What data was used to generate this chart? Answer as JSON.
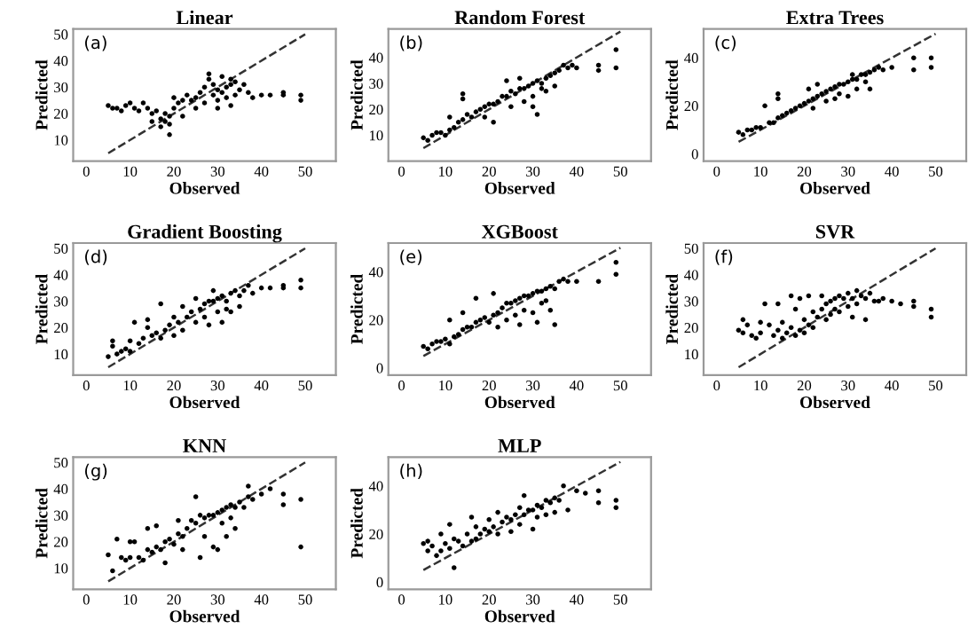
{
  "chart_data": [
    {
      "type": "scatter",
      "title": "Linear",
      "xlabel": "Observed",
      "ylabel": "Predicted",
      "annotations": [
        "(a)"
      ],
      "xlim": [
        -3,
        57
      ],
      "ylim": [
        2,
        52
      ],
      "xticks": [
        0,
        10,
        20,
        30,
        40,
        50
      ],
      "yticks": [
        10,
        20,
        30,
        40,
        50
      ],
      "grid": false,
      "series": [
        {
          "marker": "circle",
          "color": "#000000",
          "x": [
            5,
            6,
            7,
            8,
            9,
            10,
            11,
            12,
            13,
            14,
            15,
            15,
            16,
            17,
            17,
            18,
            18,
            19,
            19,
            19,
            20,
            20,
            21,
            22,
            22,
            23,
            24,
            25,
            26,
            27,
            28,
            29,
            29,
            30,
            30,
            31,
            31,
            32,
            32,
            33,
            33,
            34,
            34,
            35,
            36,
            37,
            38,
            40,
            42,
            45,
            45,
            49,
            49,
            30,
            27,
            25,
            33,
            28
          ],
          "values": [
            23,
            22,
            22,
            21,
            23,
            24,
            22,
            21,
            24,
            22,
            20,
            17,
            21,
            18,
            15,
            20,
            17,
            19,
            16,
            12,
            22,
            26,
            24,
            25,
            19,
            27,
            25,
            26,
            28,
            30,
            33,
            31,
            27,
            29,
            25,
            34,
            28,
            30,
            26,
            31,
            23,
            32,
            27,
            29,
            31,
            28,
            26,
            27,
            27,
            28,
            27,
            27,
            25,
            22,
            24,
            22,
            33,
            35
          ]
        },
        {
          "type": "line",
          "color": "#333333",
          "line_style": "dashed",
          "x": [
            5,
            50
          ],
          "values": [
            5,
            50
          ]
        }
      ]
    },
    {
      "type": "scatter",
      "title": "Random Forest",
      "xlabel": "Observed",
      "ylabel": "Predicted",
      "annotations": [
        "(b)"
      ],
      "xlim": [
        -3,
        57
      ],
      "ylim": [
        0,
        51
      ],
      "xticks": [
        0,
        10,
        20,
        30,
        40,
        50
      ],
      "yticks": [
        10,
        20,
        30,
        40
      ],
      "grid": false,
      "series": [
        {
          "marker": "circle",
          "color": "#000000",
          "x": [
            5,
            6,
            7,
            8,
            9,
            10,
            11,
            11,
            12,
            13,
            14,
            14,
            14,
            15,
            16,
            17,
            18,
            19,
            19,
            20,
            21,
            21,
            22,
            23,
            24,
            24,
            25,
            25,
            26,
            27,
            27,
            28,
            28,
            29,
            30,
            30,
            31,
            31,
            32,
            32,
            33,
            33,
            34,
            35,
            35,
            36,
            37,
            38,
            39,
            40,
            45,
            45,
            49,
            49,
            30
          ],
          "values": [
            9,
            8,
            10,
            11,
            11,
            10,
            12,
            17,
            13,
            15,
            26,
            24,
            16,
            18,
            17,
            19,
            20,
            21,
            17,
            22,
            22,
            15,
            23,
            25,
            25,
            31,
            27,
            21,
            26,
            28,
            32,
            28,
            23,
            29,
            30,
            25,
            31,
            18,
            30,
            28,
            32,
            27,
            33,
            34,
            29,
            35,
            37,
            36,
            37,
            36,
            35,
            37,
            43,
            36,
            21
          ]
        },
        {
          "type": "line",
          "color": "#333333",
          "line_style": "dashed",
          "x": [
            5,
            50
          ],
          "values": [
            5,
            50
          ]
        }
      ]
    },
    {
      "type": "scatter",
      "title": "Extra Trees",
      "xlabel": "Observed",
      "ylabel": "Predicted",
      "annotations": [
        "(c)"
      ],
      "xlim": [
        -3,
        57
      ],
      "ylim": [
        -3,
        52
      ],
      "xticks": [
        0,
        10,
        20,
        30,
        40,
        50
      ],
      "yticks": [
        0,
        20,
        40
      ],
      "grid": false,
      "series": [
        {
          "marker": "circle",
          "color": "#000000",
          "x": [
            5,
            6,
            7,
            8,
            9,
            10,
            11,
            12,
            13,
            14,
            14,
            14,
            15,
            16,
            17,
            18,
            19,
            20,
            21,
            21,
            22,
            22,
            23,
            24,
            25,
            25,
            26,
            27,
            27,
            28,
            28,
            29,
            30,
            30,
            31,
            32,
            32,
            33,
            34,
            34,
            35,
            35,
            36,
            37,
            38,
            40,
            45,
            45,
            49,
            49,
            31,
            23
          ],
          "values": [
            9,
            8,
            10,
            10,
            11,
            11,
            20,
            13,
            13,
            25,
            23,
            15,
            16,
            17,
            18,
            19,
            20,
            21,
            22,
            27,
            23,
            19,
            24,
            25,
            26,
            22,
            27,
            28,
            23,
            29,
            25,
            29,
            30,
            24,
            31,
            31,
            27,
            33,
            33,
            30,
            34,
            27,
            35,
            36,
            35,
            36,
            35,
            40,
            40,
            36,
            33,
            29
          ]
        },
        {
          "type": "line",
          "color": "#333333",
          "line_style": "dashed",
          "x": [
            5,
            50
          ],
          "values": [
            5,
            50
          ]
        }
      ]
    },
    {
      "type": "scatter",
      "title": "Gradient Boosting",
      "xlabel": "Observed",
      "ylabel": "Predicted",
      "annotations": [
        "(d)"
      ],
      "xlim": [
        -3,
        57
      ],
      "ylim": [
        2,
        52
      ],
      "xticks": [
        0,
        10,
        20,
        30,
        40,
        50
      ],
      "yticks": [
        10,
        20,
        30,
        40,
        50
      ],
      "grid": false,
      "series": [
        {
          "marker": "circle",
          "color": "#000000",
          "x": [
            5,
            6,
            6,
            7,
            8,
            9,
            10,
            10,
            11,
            12,
            13,
            14,
            14,
            15,
            16,
            17,
            17,
            18,
            19,
            20,
            20,
            21,
            22,
            22,
            23,
            24,
            25,
            25,
            26,
            27,
            27,
            28,
            28,
            29,
            30,
            30,
            31,
            31,
            32,
            32,
            33,
            33,
            34,
            35,
            35,
            36,
            37,
            38,
            40,
            42,
            45,
            45,
            49,
            49,
            29
          ],
          "values": [
            9,
            15,
            13,
            10,
            11,
            12,
            11,
            15,
            22,
            14,
            16,
            23,
            20,
            17,
            18,
            16,
            29,
            19,
            21,
            17,
            24,
            22,
            28,
            19,
            24,
            26,
            31,
            22,
            27,
            29,
            24,
            30,
            21,
            30,
            31,
            26,
            32,
            22,
            30,
            27,
            33,
            26,
            34,
            32,
            28,
            34,
            36,
            33,
            35,
            35,
            36,
            35,
            38,
            35,
            34
          ]
        },
        {
          "type": "line",
          "color": "#333333",
          "line_style": "dashed",
          "x": [
            5,
            50
          ],
          "values": [
            5,
            50
          ]
        }
      ]
    },
    {
      "type": "scatter",
      "title": "XGBoost",
      "xlabel": "Observed",
      "ylabel": "Predicted",
      "annotations": [
        "(e)"
      ],
      "xlim": [
        -3,
        57
      ],
      "ylim": [
        -3,
        52
      ],
      "xticks": [
        0,
        10,
        20,
        30,
        40,
        50
      ],
      "yticks": [
        0,
        20,
        40
      ],
      "grid": false,
      "series": [
        {
          "marker": "circle",
          "color": "#000000",
          "x": [
            5,
            6,
            7,
            8,
            9,
            10,
            11,
            11,
            12,
            13,
            14,
            14,
            15,
            16,
            17,
            17,
            18,
            19,
            20,
            21,
            21,
            22,
            22,
            23,
            24,
            24,
            25,
            26,
            26,
            27,
            27,
            28,
            28,
            29,
            30,
            30,
            31,
            31,
            32,
            32,
            33,
            33,
            34,
            35,
            35,
            36,
            37,
            38,
            40,
            45,
            49,
            49,
            34
          ],
          "values": [
            9,
            8,
            10,
            11,
            11,
            12,
            20,
            10,
            13,
            14,
            23,
            16,
            17,
            17,
            19,
            29,
            20,
            21,
            19,
            22,
            31,
            23,
            17,
            25,
            27,
            20,
            27,
            28,
            22,
            29,
            18,
            30,
            24,
            30,
            31,
            23,
            32,
            19,
            32,
            27,
            33,
            28,
            34,
            33,
            18,
            36,
            37,
            36,
            36,
            36,
            44,
            39,
            24
          ]
        },
        {
          "type": "line",
          "color": "#333333",
          "line_style": "dashed",
          "x": [
            5,
            50
          ],
          "values": [
            5,
            50
          ]
        }
      ]
    },
    {
      "type": "scatter",
      "title": "SVR",
      "xlabel": "Observed",
      "ylabel": "Predicted",
      "annotations": [
        "(f)"
      ],
      "xlim": [
        -3,
        57
      ],
      "ylim": [
        2,
        52
      ],
      "xticks": [
        0,
        10,
        20,
        30,
        40,
        50
      ],
      "yticks": [
        10,
        20,
        30,
        40,
        50
      ],
      "grid": false,
      "series": [
        {
          "marker": "circle",
          "color": "#000000",
          "x": [
            5,
            6,
            6,
            7,
            8,
            9,
            10,
            10,
            11,
            12,
            13,
            14,
            14,
            15,
            15,
            16,
            17,
            17,
            18,
            18,
            19,
            19,
            20,
            20,
            21,
            21,
            22,
            22,
            23,
            24,
            24,
            25,
            25,
            26,
            26,
            27,
            27,
            28,
            28,
            29,
            30,
            30,
            31,
            31,
            32,
            32,
            33,
            34,
            34,
            35,
            36,
            37,
            38,
            40,
            42,
            45,
            45,
            49,
            49
          ],
          "values": [
            19,
            23,
            18,
            21,
            17,
            16,
            22,
            18,
            29,
            21,
            17,
            19,
            29,
            16,
            22,
            18,
            20,
            32,
            17,
            27,
            19,
            31,
            18,
            23,
            21,
            32,
            20,
            26,
            24,
            27,
            32,
            29,
            23,
            30,
            25,
            31,
            27,
            32,
            26,
            31,
            33,
            28,
            31,
            24,
            34,
            29,
            32,
            31,
            23,
            33,
            30,
            30,
            31,
            30,
            29,
            30,
            28,
            27,
            24
          ]
        },
        {
          "type": "line",
          "color": "#333333",
          "line_style": "dashed",
          "x": [
            5,
            50
          ],
          "values": [
            5,
            50
          ]
        }
      ]
    },
    {
      "type": "scatter",
      "title": "KNN",
      "xlabel": "Observed",
      "ylabel": "Predicted",
      "annotations": [
        "(g)"
      ],
      "xlim": [
        -3,
        57
      ],
      "ylim": [
        2,
        52
      ],
      "xticks": [
        0,
        10,
        20,
        30,
        40,
        50
      ],
      "yticks": [
        10,
        20,
        30,
        40,
        50
      ],
      "grid": false,
      "series": [
        {
          "marker": "circle",
          "color": "#000000",
          "x": [
            5,
            6,
            7,
            8,
            9,
            10,
            10,
            11,
            12,
            13,
            14,
            14,
            15,
            16,
            16,
            17,
            18,
            18,
            19,
            20,
            21,
            21,
            22,
            22,
            23,
            24,
            25,
            25,
            26,
            26,
            27,
            27,
            28,
            29,
            29,
            30,
            30,
            31,
            31,
            32,
            32,
            33,
            34,
            34,
            35,
            36,
            37,
            37,
            38,
            40,
            42,
            45,
            45,
            49,
            49,
            33
          ],
          "values": [
            15,
            9,
            21,
            14,
            13,
            20,
            14,
            20,
            14,
            13,
            25,
            17,
            16,
            18,
            26,
            17,
            20,
            12,
            21,
            19,
            23,
            28,
            22,
            17,
            25,
            28,
            27,
            37,
            14,
            30,
            29,
            22,
            30,
            30,
            18,
            31,
            17,
            32,
            27,
            33,
            22,
            34,
            33,
            25,
            35,
            33,
            41,
            37,
            36,
            38,
            40,
            38,
            34,
            36,
            18,
            29
          ]
        },
        {
          "type": "line",
          "color": "#333333",
          "line_style": "dashed",
          "x": [
            5,
            50
          ],
          "values": [
            5,
            50
          ]
        }
      ]
    },
    {
      "type": "scatter",
      "title": "MLP",
      "xlabel": "Observed",
      "ylabel": "Predicted",
      "annotations": [
        "(h)"
      ],
      "xlim": [
        -3,
        57
      ],
      "ylim": [
        -3,
        52
      ],
      "xticks": [
        0,
        10,
        20,
        30,
        40,
        50
      ],
      "yticks": [
        0,
        20,
        40
      ],
      "grid": false,
      "series": [
        {
          "marker": "circle",
          "color": "#000000",
          "x": [
            5,
            6,
            6,
            7,
            8,
            9,
            9,
            10,
            11,
            11,
            12,
            12,
            13,
            14,
            15,
            16,
            16,
            17,
            17,
            18,
            19,
            20,
            20,
            21,
            22,
            22,
            23,
            24,
            25,
            25,
            26,
            27,
            27,
            28,
            28,
            29,
            30,
            30,
            31,
            31,
            32,
            33,
            33,
            34,
            35,
            35,
            36,
            37,
            38,
            40,
            42,
            45,
            45,
            49,
            49
          ],
          "values": [
            16,
            17,
            13,
            15,
            11,
            20,
            13,
            16,
            24,
            14,
            6,
            18,
            17,
            15,
            20,
            17,
            27,
            18,
            23,
            20,
            22,
            21,
            26,
            23,
            29,
            20,
            25,
            27,
            26,
            21,
            28,
            31,
            24,
            36,
            28,
            30,
            30,
            22,
            32,
            27,
            31,
            34,
            28,
            33,
            35,
            29,
            34,
            40,
            30,
            38,
            37,
            38,
            33,
            34,
            31
          ]
        },
        {
          "type": "line",
          "color": "#333333",
          "line_style": "dashed",
          "x": [
            5,
            50
          ],
          "values": [
            5,
            50
          ]
        }
      ]
    }
  ]
}
